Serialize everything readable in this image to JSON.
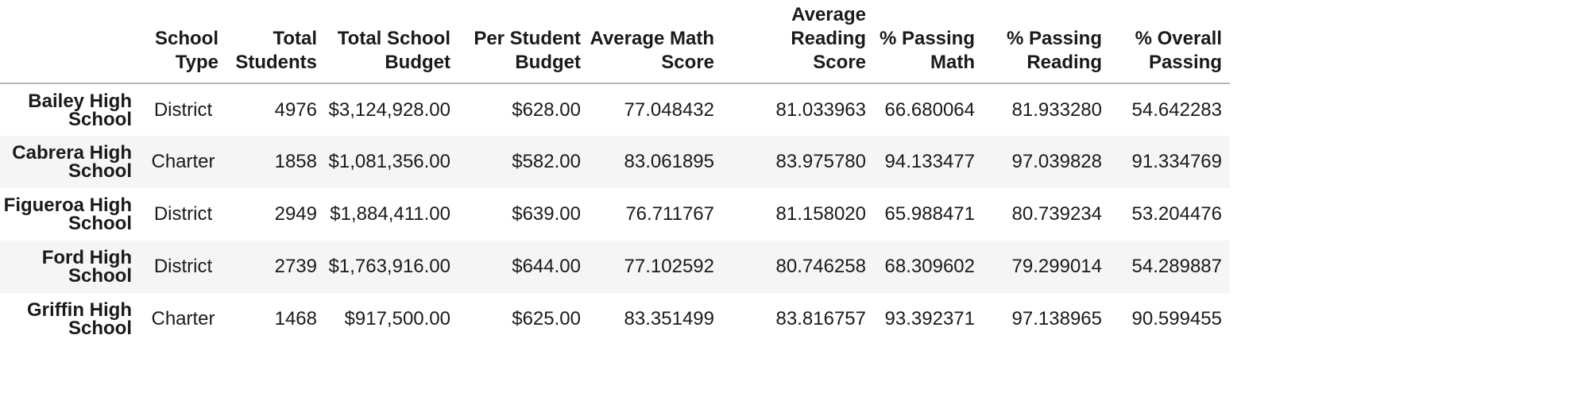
{
  "table": {
    "index_header": "",
    "columns": [
      "School Type",
      "Total Students",
      "Total School Budget",
      "Per Student Budget",
      "Average Math Score",
      "Average Reading Score",
      "% Passing Math",
      "% Passing Reading",
      "% Overall Passing"
    ],
    "column_lines": [
      [
        "School",
        "Type"
      ],
      [
        "Total",
        "Students"
      ],
      [
        "Total School",
        "Budget"
      ],
      [
        "Per Student",
        "Budget"
      ],
      [
        "Average Math",
        "Score"
      ],
      [
        "Average Reading",
        "Score"
      ],
      [
        "% Passing",
        "Math"
      ],
      [
        "% Passing",
        "Reading"
      ],
      [
        "% Overall",
        "Passing"
      ]
    ],
    "rows": [
      {
        "school_lines": [
          "Bailey High",
          "School"
        ],
        "cells": [
          "District",
          "4976",
          "$3,124,928.00",
          "$628.00",
          "77.048432",
          "81.033963",
          "66.680064",
          "81.933280",
          "54.642283"
        ]
      },
      {
        "school_lines": [
          "Cabrera High",
          "School"
        ],
        "cells": [
          "Charter",
          "1858",
          "$1,081,356.00",
          "$582.00",
          "83.061895",
          "83.975780",
          "94.133477",
          "97.039828",
          "91.334769"
        ]
      },
      {
        "school_lines": [
          "Figueroa High",
          "School"
        ],
        "cells": [
          "District",
          "2949",
          "$1,884,411.00",
          "$639.00",
          "76.711767",
          "81.158020",
          "65.988471",
          "80.739234",
          "53.204476"
        ]
      },
      {
        "school_lines": [
          "Ford High",
          "School"
        ],
        "cells": [
          "District",
          "2739",
          "$1,763,916.00",
          "$644.00",
          "77.102592",
          "80.746258",
          "68.309602",
          "79.299014",
          "54.289887"
        ]
      },
      {
        "school_lines": [
          "Griffin High",
          "School"
        ],
        "cells": [
          "Charter",
          "1468",
          "$917,500.00",
          "$625.00",
          "83.351499",
          "83.816757",
          "93.392371",
          "97.138965",
          "90.599455"
        ]
      }
    ]
  }
}
